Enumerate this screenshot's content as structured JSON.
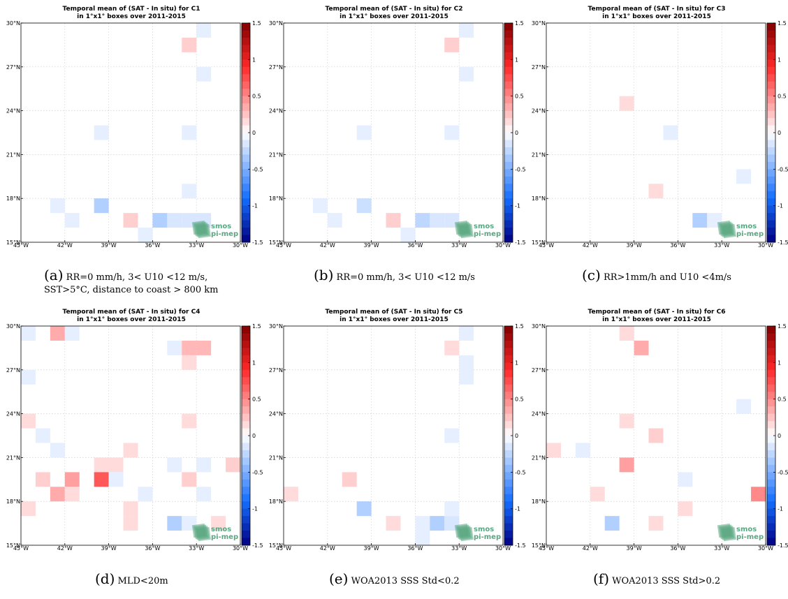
{
  "panels": [
    {
      "title_line1": "Temporal mean of (SAT - In situ) for C1",
      "title_line2": "in 1°x1° boxes over 2011-2015",
      "caption_label": "(a)",
      "caption_line1": "RR=0 mm/h, 3< U10 <12 m/s,",
      "caption_line2": "SST>5°C, distance to coast > 800 km",
      "cells": [
        {
          "lon": -32.5,
          "lat": 29.5,
          "v": -0.1
        },
        {
          "lon": -33.5,
          "lat": 28.5,
          "v": 0.2
        },
        {
          "lon": -32.5,
          "lat": 26.5,
          "v": -0.1
        },
        {
          "lon": -39.5,
          "lat": 22.5,
          "v": -0.1
        },
        {
          "lon": -33.5,
          "lat": 22.5,
          "v": -0.1
        },
        {
          "lon": -33.5,
          "lat": 18.5,
          "v": -0.1
        },
        {
          "lon": -42.5,
          "lat": 17.5,
          "v": -0.1
        },
        {
          "lon": -39.5,
          "lat": 17.5,
          "v": -0.3
        },
        {
          "lon": -41.5,
          "lat": 16.5,
          "v": -0.1
        },
        {
          "lon": -37.5,
          "lat": 16.5,
          "v": 0.2
        },
        {
          "lon": -35.5,
          "lat": 16.5,
          "v": -0.3
        },
        {
          "lon": -34.5,
          "lat": 16.5,
          "v": -0.15
        },
        {
          "lon": -33.5,
          "lat": 16.5,
          "v": -0.15
        },
        {
          "lon": -32.5,
          "lat": 16.5,
          "v": -0.15
        },
        {
          "lon": -36.5,
          "lat": 15.5,
          "v": -0.1
        }
      ]
    },
    {
      "title_line1": "Temporal mean of (SAT - In situ) for C2",
      "title_line2": "in 1°x1° boxes over 2011-2015",
      "caption_label": "(b)",
      "caption_line1": "RR=0 mm/h, 3< U10 <12 m/s",
      "caption_line2": "",
      "cells": [
        {
          "lon": -32.5,
          "lat": 29.5,
          "v": -0.1
        },
        {
          "lon": -33.5,
          "lat": 28.5,
          "v": 0.2
        },
        {
          "lon": -32.5,
          "lat": 26.5,
          "v": -0.1
        },
        {
          "lon": -39.5,
          "lat": 22.5,
          "v": -0.1
        },
        {
          "lon": -33.5,
          "lat": 22.5,
          "v": -0.1
        },
        {
          "lon": -42.5,
          "lat": 17.5,
          "v": -0.1
        },
        {
          "lon": -39.5,
          "lat": 17.5,
          "v": -0.2
        },
        {
          "lon": -41.5,
          "lat": 16.5,
          "v": -0.1
        },
        {
          "lon": -37.5,
          "lat": 16.5,
          "v": 0.2
        },
        {
          "lon": -35.5,
          "lat": 16.5,
          "v": -0.25
        },
        {
          "lon": -34.5,
          "lat": 16.5,
          "v": -0.15
        },
        {
          "lon": -33.5,
          "lat": 16.5,
          "v": -0.15
        },
        {
          "lon": -36.5,
          "lat": 15.5,
          "v": -0.1
        }
      ]
    },
    {
      "title_line1": "Temporal mean of (SAT - In situ) for C3",
      "title_line2": "in 1°x1° boxes over 2011-2015",
      "caption_label": "(c)",
      "caption_line1": "RR>1mm/h and U10 <4m/s",
      "caption_line2": "",
      "cells": [
        {
          "lon": -39.5,
          "lat": 24.5,
          "v": 0.15
        },
        {
          "lon": -36.5,
          "lat": 22.5,
          "v": -0.1
        },
        {
          "lon": -31.5,
          "lat": 19.5,
          "v": -0.1
        },
        {
          "lon": -37.5,
          "lat": 18.5,
          "v": 0.15
        },
        {
          "lon": -34.5,
          "lat": 16.5,
          "v": -0.3
        },
        {
          "lon": -33.5,
          "lat": 16.5,
          "v": -0.1
        }
      ]
    },
    {
      "title_line1": "Temporal mean of (SAT - In situ) for C4",
      "title_line2": "in 1°x1° boxes over 2011-2015",
      "caption_label": "(d)",
      "caption_line1": "MLD<20m",
      "caption_line2": "",
      "cells": [
        {
          "lon": -44.5,
          "lat": 29.5,
          "v": -0.1
        },
        {
          "lon": -42.5,
          "lat": 29.5,
          "v": 0.35
        },
        {
          "lon": -41.5,
          "lat": 29.5,
          "v": -0.1
        },
        {
          "lon": -34.5,
          "lat": 28.5,
          "v": -0.1
        },
        {
          "lon": -33.5,
          "lat": 28.5,
          "v": 0.3
        },
        {
          "lon": -32.5,
          "lat": 28.5,
          "v": 0.3
        },
        {
          "lon": -33.5,
          "lat": 27.5,
          "v": 0.15
        },
        {
          "lon": -44.5,
          "lat": 26.5,
          "v": -0.1
        },
        {
          "lon": -44.5,
          "lat": 23.5,
          "v": 0.15
        },
        {
          "lon": -33.5,
          "lat": 23.5,
          "v": 0.15
        },
        {
          "lon": -43.5,
          "lat": 22.5,
          "v": -0.1
        },
        {
          "lon": -42.5,
          "lat": 21.5,
          "v": -0.1
        },
        {
          "lon": -37.5,
          "lat": 21.5,
          "v": 0.15
        },
        {
          "lon": -39.5,
          "lat": 20.5,
          "v": 0.15
        },
        {
          "lon": -38.5,
          "lat": 20.5,
          "v": 0.15
        },
        {
          "lon": -34.5,
          "lat": 20.5,
          "v": -0.1
        },
        {
          "lon": -32.5,
          "lat": 20.5,
          "v": -0.1
        },
        {
          "lon": -30.5,
          "lat": 20.5,
          "v": 0.2
        },
        {
          "lon": -43.5,
          "lat": 19.5,
          "v": 0.2
        },
        {
          "lon": -41.5,
          "lat": 19.5,
          "v": 0.4
        },
        {
          "lon": -39.5,
          "lat": 19.5,
          "v": 0.7
        },
        {
          "lon": -38.5,
          "lat": 19.5,
          "v": -0.1
        },
        {
          "lon": -33.5,
          "lat": 19.5,
          "v": 0.2
        },
        {
          "lon": -42.5,
          "lat": 18.5,
          "v": 0.35
        },
        {
          "lon": -41.5,
          "lat": 18.5,
          "v": 0.15
        },
        {
          "lon": -36.5,
          "lat": 18.5,
          "v": -0.1
        },
        {
          "lon": -32.5,
          "lat": 18.5,
          "v": -0.1
        },
        {
          "lon": -44.5,
          "lat": 17.5,
          "v": 0.15
        },
        {
          "lon": -37.5,
          "lat": 17.5,
          "v": 0.15
        },
        {
          "lon": -37.5,
          "lat": 16.5,
          "v": 0.15
        },
        {
          "lon": -34.5,
          "lat": 16.5,
          "v": -0.3
        },
        {
          "lon": -33.5,
          "lat": 16.5,
          "v": -0.1
        },
        {
          "lon": -31.5,
          "lat": 16.5,
          "v": 0.15
        }
      ]
    },
    {
      "title_line1": "Temporal mean of (SAT - In situ) for C5",
      "title_line2": "in 1°x1° boxes over 2011-2015",
      "caption_label": "(e)",
      "caption_line1": "WOA2013 SSS Std<0.2",
      "caption_line2": "",
      "cells": [
        {
          "lon": -32.5,
          "lat": 29.5,
          "v": -0.1
        },
        {
          "lon": -33.5,
          "lat": 28.5,
          "v": 0.15
        },
        {
          "lon": -32.5,
          "lat": 27.5,
          "v": -0.1
        },
        {
          "lon": -32.5,
          "lat": 26.5,
          "v": -0.1
        },
        {
          "lon": -33.5,
          "lat": 22.5,
          "v": -0.1
        },
        {
          "lon": -40.5,
          "lat": 19.5,
          "v": 0.2
        },
        {
          "lon": -44.5,
          "lat": 18.5,
          "v": 0.15
        },
        {
          "lon": -39.5,
          "lat": 17.5,
          "v": -0.3
        },
        {
          "lon": -33.5,
          "lat": 17.5,
          "v": -0.1
        },
        {
          "lon": -37.5,
          "lat": 16.5,
          "v": 0.15
        },
        {
          "lon": -35.5,
          "lat": 16.5,
          "v": -0.1
        },
        {
          "lon": -34.5,
          "lat": 16.5,
          "v": -0.3
        },
        {
          "lon": -33.5,
          "lat": 16.5,
          "v": -0.15
        },
        {
          "lon": -35.5,
          "lat": 15.5,
          "v": -0.1
        }
      ]
    },
    {
      "title_line1": "Temporal mean of (SAT - In situ) for C6",
      "title_line2": "in 1°x1° boxes over 2011-2015",
      "caption_label": "(f)",
      "caption_line1": "WOA2013 SSS Std>0.2",
      "caption_line2": "",
      "cells": [
        {
          "lon": -39.5,
          "lat": 29.5,
          "v": 0.15
        },
        {
          "lon": -38.5,
          "lat": 28.5,
          "v": 0.35
        },
        {
          "lon": -31.5,
          "lat": 24.5,
          "v": -0.1
        },
        {
          "lon": -39.5,
          "lat": 23.5,
          "v": 0.15
        },
        {
          "lon": -37.5,
          "lat": 22.5,
          "v": 0.2
        },
        {
          "lon": -44.5,
          "lat": 21.5,
          "v": 0.15
        },
        {
          "lon": -42.5,
          "lat": 21.5,
          "v": -0.1
        },
        {
          "lon": -39.5,
          "lat": 20.5,
          "v": 0.4
        },
        {
          "lon": -35.5,
          "lat": 19.5,
          "v": -0.1
        },
        {
          "lon": -41.5,
          "lat": 18.5,
          "v": 0.15
        },
        {
          "lon": -30.5,
          "lat": 18.5,
          "v": 0.5
        },
        {
          "lon": -35.5,
          "lat": 17.5,
          "v": 0.15
        },
        {
          "lon": -40.5,
          "lat": 16.5,
          "v": -0.3
        },
        {
          "lon": -37.5,
          "lat": 16.5,
          "v": 0.15
        }
      ]
    }
  ],
  "axes": {
    "x_ticks": [
      "45°W",
      "42°W",
      "39°W",
      "36°W",
      "33°W",
      "30°W"
    ],
    "y_ticks": [
      "15°N",
      "18°N",
      "21°N",
      "24°N",
      "27°N",
      "30°N"
    ],
    "lon_range": [
      -45,
      -30
    ],
    "lat_range": [
      15,
      30
    ],
    "grid": true
  },
  "colorbar": {
    "range": [
      -1.5,
      1.5
    ],
    "tick_labels": [
      "1.5",
      "1",
      "0.5",
      "0",
      "-0.5",
      "-1",
      "-1.5"
    ],
    "levels": 30
  },
  "logo": {
    "line1": "smos",
    "line2": "pi-mep",
    "color": "#5aa882"
  },
  "chart_data": [
    {
      "type": "heatmap",
      "title": "Temporal mean of (SAT - In situ) for C1 in 1°x1° boxes over 2011-2015",
      "x_range": [
        -45,
        -30
      ],
      "y_range": [
        15,
        30
      ],
      "color_range": [
        -1.5,
        1.5
      ],
      "grid": true
    },
    {
      "type": "heatmap",
      "title": "Temporal mean of (SAT - In situ) for C2 in 1°x1° boxes over 2011-2015",
      "x_range": [
        -45,
        -30
      ],
      "y_range": [
        15,
        30
      ],
      "color_range": [
        -1.5,
        1.5
      ],
      "grid": true
    },
    {
      "type": "heatmap",
      "title": "Temporal mean of (SAT - In situ) for C3 in 1°x1° boxes over 2011-2015",
      "x_range": [
        -45,
        -30
      ],
      "y_range": [
        15,
        30
      ],
      "color_range": [
        -1.5,
        1.5
      ],
      "grid": true
    },
    {
      "type": "heatmap",
      "title": "Temporal mean of (SAT - In situ) for C4 in 1°x1° boxes over 2011-2015",
      "x_range": [
        -45,
        -30
      ],
      "y_range": [
        15,
        30
      ],
      "color_range": [
        -1.5,
        1.5
      ],
      "grid": true
    },
    {
      "type": "heatmap",
      "title": "Temporal mean of (SAT - In situ) for C5 in 1°x1° boxes over 2011-2015",
      "x_range": [
        -45,
        -30
      ],
      "y_range": [
        15,
        30
      ],
      "color_range": [
        -1.5,
        1.5
      ],
      "grid": true
    },
    {
      "type": "heatmap",
      "title": "Temporal mean of (SAT - In situ) for C6 in 1°x1° boxes over 2011-2015",
      "x_range": [
        -45,
        -30
      ],
      "y_range": [
        15,
        30
      ],
      "color_range": [
        -1.5,
        1.5
      ],
      "grid": true
    }
  ]
}
